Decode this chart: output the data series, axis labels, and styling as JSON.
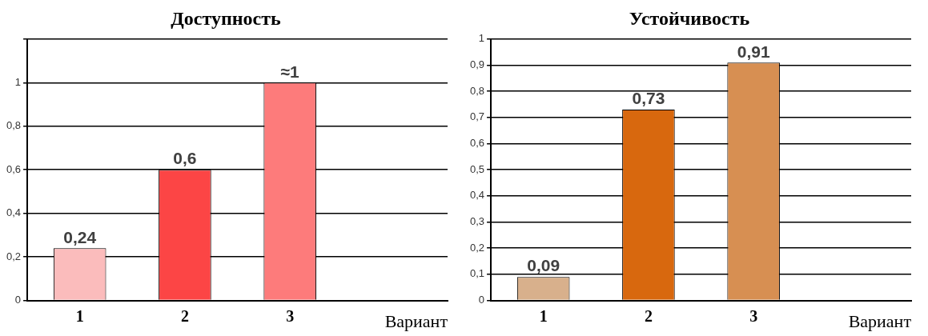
{
  "chart_data": [
    {
      "type": "bar",
      "title": "Доступность",
      "xlabel": "Вариант",
      "categories": [
        "1",
        "2",
        "3",
        null
      ],
      "values": [
        0.24,
        0.6,
        1,
        null
      ],
      "colors": [
        "#fbbcbc",
        "#fc4545",
        "#fd7b7b",
        "#ffffff"
      ],
      "value_labels": [
        "0,24",
        "0,6",
        "≈1",
        null
      ],
      "ylim": [
        0,
        1.2
      ],
      "yticks": [
        {
          "value": 0,
          "label": "0"
        },
        {
          "value": 0.2,
          "label": "0,2"
        },
        {
          "value": 0.4,
          "label": "0,4"
        },
        {
          "value": 0.6,
          "label": "0,6"
        },
        {
          "value": 0.8,
          "label": "0,8"
        },
        {
          "value": 1,
          "label": "1"
        },
        {
          "value": 1.2,
          "label": null
        }
      ],
      "grid": "y"
    },
    {
      "type": "bar",
      "title": "Устойчивость",
      "xlabel": "Вариант",
      "categories": [
        "1",
        "2",
        "3",
        null
      ],
      "values": [
        0.09,
        0.73,
        0.91,
        null
      ],
      "colors": [
        "#d8b08c",
        "#d8680e",
        "#d78f52",
        "#ffffff"
      ],
      "value_labels": [
        "0,09",
        "0,73",
        "0,91",
        null
      ],
      "ylim": [
        0,
        1
      ],
      "yticks": [
        {
          "value": 0,
          "label": "0"
        },
        {
          "value": 0.1,
          "label": "0,1"
        },
        {
          "value": 0.2,
          "label": "0,2"
        },
        {
          "value": 0.3,
          "label": "0,3"
        },
        {
          "value": 0.4,
          "label": "0,4"
        },
        {
          "value": 0.5,
          "label": "0,5"
        },
        {
          "value": 0.6,
          "label": "0,6"
        },
        {
          "value": 0.7,
          "label": "0,7"
        },
        {
          "value": 0.8,
          "label": "0,8"
        },
        {
          "value": 0.9,
          "label": "0,9"
        },
        {
          "value": 1,
          "label": "1"
        }
      ],
      "grid": "y"
    }
  ]
}
